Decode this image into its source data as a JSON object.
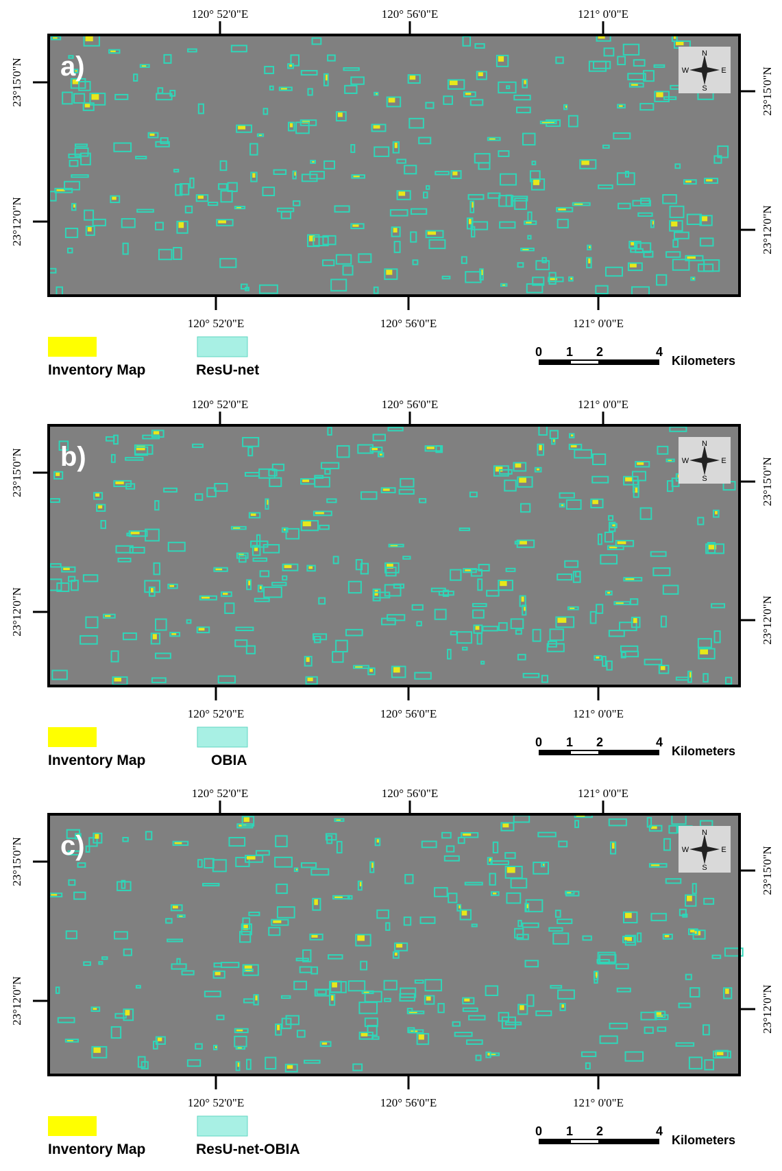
{
  "panels": [
    {
      "label": "a)",
      "top_lon": [
        "120° 52'0\"E",
        "120° 56'0\"E",
        "121° 0'0\"E"
      ],
      "bottom_lon": [
        "120° 52'0\"E",
        "120° 56'0\"E",
        "121° 0'0\"E"
      ],
      "left_lat": [
        "23°15'0\"N",
        "23°12'0\"N"
      ],
      "right_lat": [
        "23°15'0\"N",
        "23°12'0\"N"
      ],
      "legend": [
        "Inventory Map",
        "ResU-net"
      ]
    },
    {
      "label": "b)",
      "top_lon": [
        "120° 52'0\"E",
        "120° 56'0\"E",
        "121° 0'0\"E"
      ],
      "bottom_lon": [
        "120° 52'0\"E",
        "120° 56'0\"E",
        "121° 0'0\"E"
      ],
      "left_lat": [
        "23°15'0\"N",
        "23°12'0\"N"
      ],
      "right_lat": [
        "23°15'0\"N",
        "23°12'0\"N"
      ],
      "legend": [
        "Inventory Map",
        "OBIA"
      ]
    },
    {
      "label": "c)",
      "top_lon": [
        "120° 52'0\"E",
        "120° 56'0\"E",
        "121° 0'0\"E"
      ],
      "bottom_lon": [
        "120° 52'0\"E",
        "120° 56'0\"E",
        "121° 0'0\"E"
      ],
      "left_lat": [
        "23°15'0\"N",
        "23°12'0\"N"
      ],
      "right_lat": [
        "23°15'0\"N",
        "23°12'0\"N"
      ],
      "legend": [
        "Inventory Map",
        "ResU-net-OBIA"
      ]
    }
  ],
  "scale_bar": {
    "ticks": [
      "0",
      "1",
      "2",
      "4"
    ],
    "unit": "Kilometers"
  },
  "compass": {
    "n": "N",
    "s": "S",
    "e": "E",
    "w": "W"
  }
}
